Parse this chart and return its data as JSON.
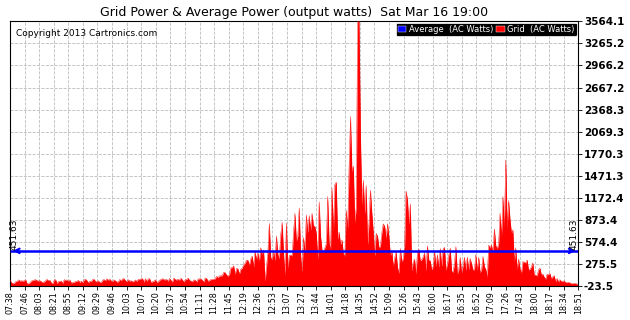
{
  "title": "Grid Power & Average Power (output watts)  Sat Mar 16 19:00",
  "copyright": "Copyright 2013 Cartronics.com",
  "average_line_value": 451.63,
  "average_line_label": "451.63",
  "yticks": [
    -23.5,
    275.5,
    574.4,
    873.4,
    1172.4,
    1471.3,
    1770.3,
    2069.3,
    2368.3,
    2667.2,
    2966.2,
    3265.2,
    3564.1
  ],
  "ylim": [
    -23.5,
    3564.1
  ],
  "background_color": "#ffffff",
  "grid_color": "#aaaaaa",
  "fill_color": "#ff0000",
  "line_color": "#ff0000",
  "average_line_color": "#0000ff",
  "legend_avg_bg": "#0000ff",
  "legend_grid_bg": "#ff0000",
  "legend_avg_text": "Average  (AC Watts)",
  "legend_grid_text": "Grid  (AC Watts)",
  "xtick_labels": [
    "07:38",
    "07:46",
    "08:03",
    "08:21",
    "08:55",
    "09:12",
    "09:29",
    "09:46",
    "10:03",
    "10:07",
    "10:20",
    "10:37",
    "10:54",
    "11:11",
    "11:28",
    "11:45",
    "12:19",
    "12:36",
    "12:53",
    "13:07",
    "13:27",
    "13:44",
    "14:01",
    "14:18",
    "14:35",
    "14:52",
    "15:09",
    "15:26",
    "15:43",
    "16:00",
    "16:17",
    "16:35",
    "16:52",
    "17:09",
    "17:26",
    "17:43",
    "18:00",
    "18:17",
    "18:34",
    "18:51"
  ],
  "n_points": 400
}
